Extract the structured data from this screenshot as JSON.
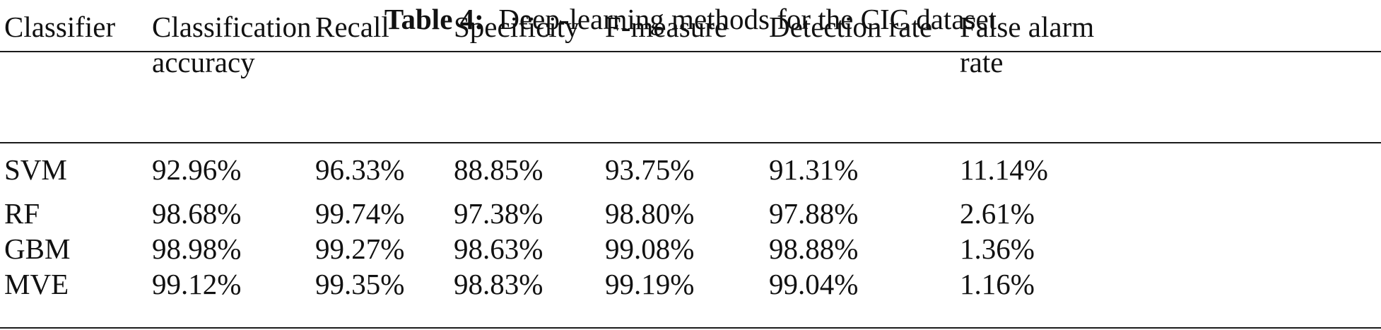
{
  "caption": {
    "label": "Table 4:",
    "text": "Deep-learning methods for the CIC dataset"
  },
  "table": {
    "columns": [
      "Classifier",
      "Classification accuracy",
      "Recall",
      "Specificity",
      "F-measure",
      "Detection rate",
      "False alarm rate"
    ],
    "rows": [
      [
        "SVM",
        "92.96%",
        "96.33%",
        "88.85%",
        "93.75%",
        "91.31%",
        "11.14%"
      ],
      [
        "RF",
        "98.68%",
        "99.74%",
        "97.38%",
        "98.80%",
        "97.88%",
        "2.61%"
      ],
      [
        "GBM",
        "98.98%",
        "99.27%",
        "98.63%",
        "99.08%",
        "98.88%",
        "1.36%"
      ],
      [
        "MVE",
        "99.12%",
        "99.35%",
        "98.83%",
        "99.19%",
        "99.04%",
        "1.16%"
      ]
    ]
  }
}
